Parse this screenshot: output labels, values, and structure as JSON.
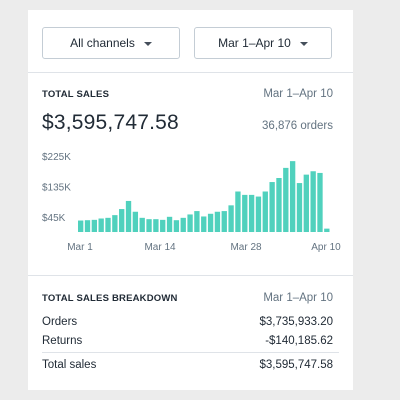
{
  "filters": {
    "channel": "All channels",
    "date_range": "Mar 1–Apr 10"
  },
  "total_sales": {
    "title": "TOTAL SALES",
    "date_range": "Mar 1–Apr 10",
    "amount": "$3,595,747.58",
    "orders": "36,876 orders"
  },
  "chart_data": {
    "type": "bar",
    "color": "#50d1bd",
    "x_tick_labels": [
      "Mar 1",
      "Mar 14",
      "Mar 28",
      "Apr 10"
    ],
    "y_tick_labels": [
      "$225K",
      "$135K",
      "$45K"
    ],
    "y_ticks": [
      225000,
      135000,
      45000
    ],
    "ylim": [
      0,
      240000
    ],
    "values": [
      34000,
      35000,
      36000,
      40000,
      42000,
      50000,
      68000,
      92000,
      60000,
      42000,
      38000,
      38000,
      36000,
      45000,
      35000,
      42000,
      52000,
      62000,
      46000,
      54000,
      60000,
      62000,
      79000,
      120000,
      110000,
      110000,
      105000,
      120000,
      148000,
      160000,
      190000,
      210000,
      145000,
      170000,
      180000,
      175000,
      10000
    ]
  },
  "breakdown": {
    "title": "TOTAL SALES BREAKDOWN",
    "date_range": "Mar 1–Apr 10",
    "rows": [
      {
        "label": "Orders",
        "value": "$3,735,933.20"
      },
      {
        "label": "Returns",
        "value": "-$140,185.62"
      },
      {
        "label": "Total sales",
        "value": "$3,595,747.58"
      }
    ]
  }
}
